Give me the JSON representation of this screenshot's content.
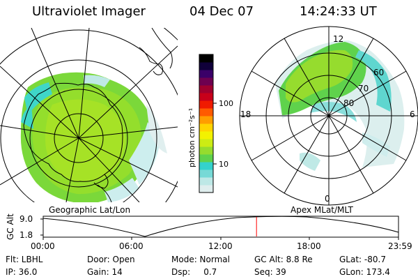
{
  "header": {
    "instrument": "Ultraviolet Imager",
    "date": "04 Dec 07",
    "time": "14:24:33 UT"
  },
  "left_panel": {
    "caption": "Geographic Lat/Lon"
  },
  "right_panel": {
    "caption": "Apex  MLat/MLT",
    "mlt_labels": [
      "12",
      "18",
      "6",
      "0"
    ],
    "mlat_labels": [
      "60",
      "70",
      "80"
    ]
  },
  "colorbar": {
    "unit_label": "photon cm⁻²s⁻¹",
    "tick_labels": [
      "100",
      "10"
    ],
    "scale": "log",
    "colors": [
      "#dfeeee",
      "#bde8e6",
      "#76d9d6",
      "#34d2cc",
      "#5fd24c",
      "#96dc2e",
      "#ccec14",
      "#f3f200",
      "#ffd400",
      "#ff9d00",
      "#ff5a00",
      "#f01a00",
      "#c8001a",
      "#a0002e",
      "#6e0050",
      "#3a0068",
      "#10003a",
      "#000000"
    ]
  },
  "timeline": {
    "y_axis_label": "GC Alt",
    "y_ticks": [
      "9.0",
      "1.8"
    ],
    "x_ticks": [
      "00:00",
      "06:00",
      "12:00",
      "18:00",
      "23:59"
    ],
    "marker_color": "#ff0000",
    "marker_hour": 14.41
  },
  "info": {
    "filter": "Flt: LBHL",
    "ip": "IP: 36.0",
    "door": "Door: Open",
    "gain": "Gain: 14",
    "mode": "Mode: Normal",
    "dsp": "Dsp:     0.7",
    "gc_alt": "GC Alt: 8.8 Re",
    "seq": "Seq: 39",
    "glat": "GLat: -80.7",
    "glon": "GLon: 173.4"
  }
}
